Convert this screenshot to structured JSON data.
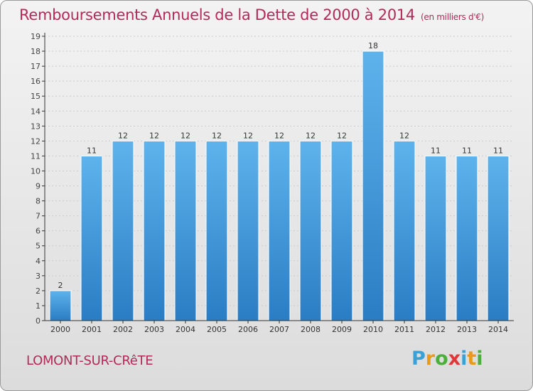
{
  "title": "Remboursements Annuels de la Dette de 2000 à 2014",
  "unit": "(en milliers d'€)",
  "commune": "LOMONT-SUR-CRêTE",
  "logo": {
    "letters": [
      "P",
      "r",
      "o",
      "x",
      "i",
      "t",
      "i"
    ],
    "colors": [
      "#3aa0d8",
      "#e89a1c",
      "#4caf3c",
      "#e03838",
      "#3aa0d8",
      "#e89a1c",
      "#4caf3c"
    ]
  },
  "colors": {
    "title": "#b22a5a",
    "bar_light": "#5eb3ec",
    "bar_dark": "#2a7dc3",
    "axis": "#333333",
    "grid": "#cccccc"
  },
  "chart_data": {
    "type": "bar",
    "categories": [
      "2000",
      "2001",
      "2002",
      "2003",
      "2004",
      "2005",
      "2006",
      "2007",
      "2008",
      "2009",
      "2010",
      "2011",
      "2012",
      "2013",
      "2014"
    ],
    "values": [
      2,
      11,
      12,
      12,
      12,
      12,
      12,
      12,
      12,
      12,
      18,
      12,
      11,
      11,
      11
    ],
    "data_labels": [
      "2",
      "11",
      "12",
      "12",
      "12",
      "12",
      "12",
      "12",
      "12",
      "12",
      "18",
      "12",
      "11",
      "11",
      "11"
    ],
    "ylim": [
      0,
      19
    ],
    "yticks": [
      0,
      1,
      2,
      3,
      4,
      5,
      6,
      7,
      8,
      9,
      10,
      11,
      12,
      13,
      14,
      15,
      16,
      17,
      18,
      19
    ],
    "grid": true
  }
}
